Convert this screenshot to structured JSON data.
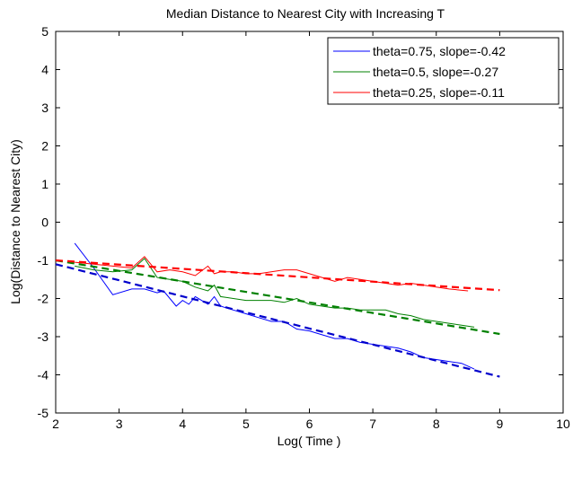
{
  "chart_data": {
    "type": "line",
    "title": "Median Distance to Nearest City with Increasing T",
    "xlabel": "Log( Time )",
    "ylabel": "Log(Distance to Nearest City)",
    "xlim": [
      2,
      10
    ],
    "ylim": [
      -5,
      5
    ],
    "xticks": [
      "2",
      "3",
      "4",
      "5",
      "6",
      "7",
      "8",
      "9",
      "10"
    ],
    "yticks": [
      "5",
      "4",
      "3",
      "2",
      "1",
      "0",
      "-1",
      "-2",
      "-3",
      "-4",
      "-5"
    ],
    "grid": false,
    "legend_position": "top-right",
    "series": [
      {
        "name": "theta=0.75, slope=-0.42",
        "color": "#0000ff",
        "style": "solid",
        "x": [
          2.3,
          2.6,
          2.9,
          3.2,
          3.4,
          3.6,
          3.7,
          3.9,
          4.0,
          4.1,
          4.2,
          4.3,
          4.4,
          4.5,
          4.6,
          4.8,
          5.0,
          5.2,
          5.4,
          5.6,
          5.8,
          6.0,
          6.2,
          6.4,
          6.6,
          6.8,
          7.0,
          7.2,
          7.4,
          7.6,
          7.8,
          8.0,
          8.2,
          8.4,
          8.6
        ],
        "y": [
          -0.55,
          -1.2,
          -1.9,
          -1.75,
          -1.75,
          -1.85,
          -1.8,
          -2.2,
          -2.05,
          -2.15,
          -1.95,
          -2.05,
          -2.15,
          -1.95,
          -2.2,
          -2.3,
          -2.4,
          -2.5,
          -2.6,
          -2.6,
          -2.8,
          -2.85,
          -2.95,
          -3.05,
          -3.05,
          -3.15,
          -3.2,
          -3.25,
          -3.3,
          -3.4,
          -3.55,
          -3.6,
          -3.65,
          -3.7,
          -3.85
        ]
      },
      {
        "name": "theta=0.5, slope=-0.27",
        "color": "#008000",
        "style": "solid",
        "x": [
          2.3,
          2.6,
          2.9,
          3.2,
          3.4,
          3.6,
          3.8,
          4.0,
          4.2,
          4.4,
          4.5,
          4.6,
          4.8,
          5.0,
          5.2,
          5.4,
          5.6,
          5.8,
          6.0,
          6.2,
          6.4,
          6.6,
          6.8,
          7.0,
          7.2,
          7.4,
          7.6,
          7.8,
          8.0,
          8.2,
          8.4,
          8.6
        ],
        "y": [
          -1.15,
          -1.25,
          -1.3,
          -1.25,
          -0.95,
          -1.45,
          -1.5,
          -1.55,
          -1.7,
          -1.8,
          -1.65,
          -1.95,
          -2.0,
          -2.05,
          -2.05,
          -2.05,
          -2.1,
          -2.0,
          -2.15,
          -2.2,
          -2.25,
          -2.25,
          -2.3,
          -2.3,
          -2.3,
          -2.4,
          -2.45,
          -2.55,
          -2.6,
          -2.65,
          -2.7,
          -2.75
        ]
      },
      {
        "name": "theta=0.25, slope=-0.11",
        "color": "#ff0000",
        "style": "solid",
        "x": [
          2.3,
          2.6,
          2.9,
          3.2,
          3.4,
          3.6,
          3.8,
          4.0,
          4.2,
          4.4,
          4.5,
          4.6,
          4.8,
          5.0,
          5.2,
          5.4,
          5.6,
          5.8,
          6.0,
          6.2,
          6.4,
          6.6,
          6.8,
          7.0,
          7.2,
          7.4,
          7.6,
          7.8,
          8.0,
          8.2,
          8.5
        ],
        "y": [
          -1.05,
          -1.1,
          -1.15,
          -1.2,
          -0.9,
          -1.3,
          -1.25,
          -1.3,
          -1.4,
          -1.15,
          -1.35,
          -1.3,
          -1.3,
          -1.35,
          -1.35,
          -1.3,
          -1.25,
          -1.25,
          -1.35,
          -1.45,
          -1.55,
          -1.45,
          -1.5,
          -1.55,
          -1.6,
          -1.65,
          -1.6,
          -1.65,
          -1.7,
          -1.75,
          -1.8
        ]
      },
      {
        "color": "#0000cc",
        "style": "dashed",
        "x": [
          2.0,
          9.0
        ],
        "y": [
          -1.1,
          -4.05
        ]
      },
      {
        "color": "#008000",
        "style": "dashed",
        "x": [
          2.0,
          9.0
        ],
        "y": [
          -1.0,
          -2.93
        ]
      },
      {
        "color": "#ff0000",
        "style": "dashed",
        "x": [
          2.0,
          9.0
        ],
        "y": [
          -1.0,
          -1.78
        ]
      }
    ]
  }
}
